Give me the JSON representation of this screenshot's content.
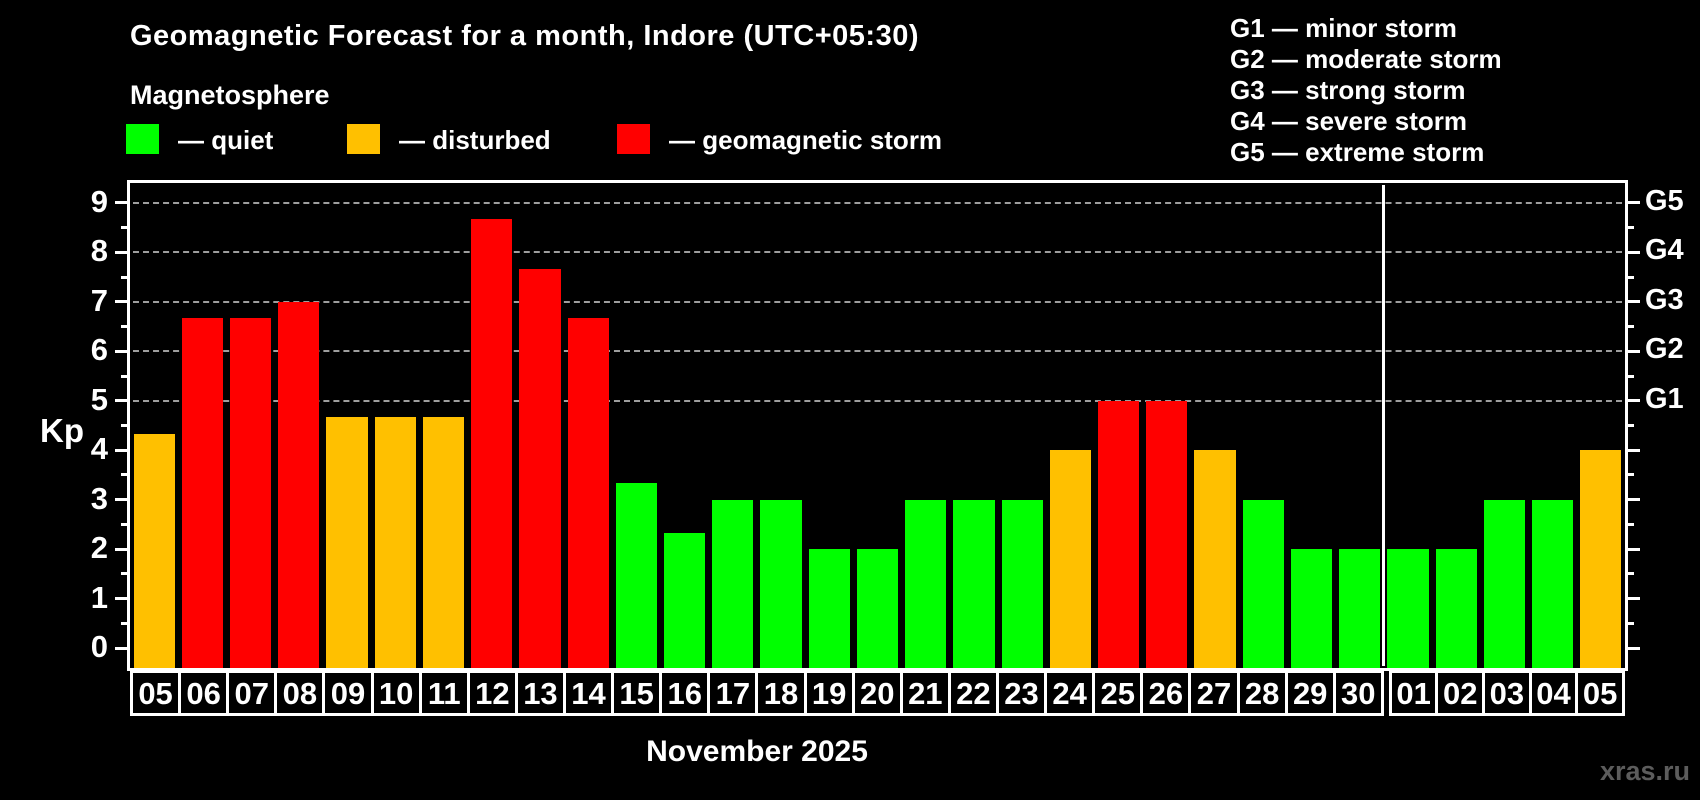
{
  "page": {
    "title": "Geomagnetic Forecast for a month, Indore (UTC+05:30)",
    "subtitle": "Magnetosphere",
    "watermark": "xras.ru"
  },
  "legend": {
    "items": [
      {
        "status": "quiet",
        "label": "— quiet",
        "color": "#00ff00"
      },
      {
        "status": "disturbed",
        "label": "— disturbed",
        "color": "#ffc000"
      },
      {
        "status": "storm",
        "label": "— geomagnetic storm",
        "color": "#ff0000"
      }
    ]
  },
  "storm_scale": [
    {
      "label": "G1 — minor storm"
    },
    {
      "label": "G2 — moderate storm"
    },
    {
      "label": "G3 — strong storm"
    },
    {
      "label": "G4 — severe storm"
    },
    {
      "label": "G5 — extreme storm"
    }
  ],
  "chart_data": {
    "type": "bar",
    "title": "Geomagnetic Forecast for a month, Indore (UTC+05:30)",
    "subtitle": "Magnetosphere",
    "xlabel": "November 2025",
    "ylabel": "Kp",
    "ylim": [
      -0.4,
      9.4
    ],
    "yticks": [
      0,
      1,
      2,
      3,
      4,
      5,
      6,
      7,
      8,
      9
    ],
    "gridlines_at_kp": [
      5,
      6,
      7,
      8,
      9
    ],
    "grid": "dashed-horizontal",
    "right_axis": [
      {
        "kp": 5,
        "label": "G1"
      },
      {
        "kp": 6,
        "label": "G2"
      },
      {
        "kp": 7,
        "label": "G3"
      },
      {
        "kp": 8,
        "label": "G4"
      },
      {
        "kp": 9,
        "label": "G5"
      }
    ],
    "november_days_count": 26,
    "month_separator_after_category_index": 25,
    "categories": [
      "05",
      "06",
      "07",
      "08",
      "09",
      "10",
      "11",
      "12",
      "13",
      "14",
      "15",
      "16",
      "17",
      "18",
      "19",
      "20",
      "21",
      "22",
      "23",
      "24",
      "25",
      "26",
      "27",
      "28",
      "29",
      "30",
      "01",
      "02",
      "03",
      "04",
      "05"
    ],
    "values": [
      4.33,
      6.67,
      6.67,
      7,
      4.67,
      4.67,
      4.67,
      8.67,
      7.67,
      6.67,
      3.33,
      2.33,
      3,
      3,
      2,
      2,
      3,
      3,
      3,
      4,
      5,
      5,
      4,
      3,
      2,
      2,
      2,
      2,
      3,
      3,
      4
    ],
    "statuses": [
      "disturbed",
      "storm",
      "storm",
      "storm",
      "disturbed",
      "disturbed",
      "disturbed",
      "storm",
      "storm",
      "storm",
      "quiet",
      "quiet",
      "quiet",
      "quiet",
      "quiet",
      "quiet",
      "quiet",
      "quiet",
      "quiet",
      "disturbed",
      "storm",
      "storm",
      "disturbed",
      "quiet",
      "quiet",
      "quiet",
      "quiet",
      "quiet",
      "quiet",
      "quiet",
      "disturbed"
    ],
    "colors": {
      "quiet": "#00ff00",
      "disturbed": "#ffc000",
      "storm": "#ff0000",
      "grid": "#9e9e9e",
      "axis": "#ffffff",
      "watermark": "#5c5c5c"
    }
  }
}
